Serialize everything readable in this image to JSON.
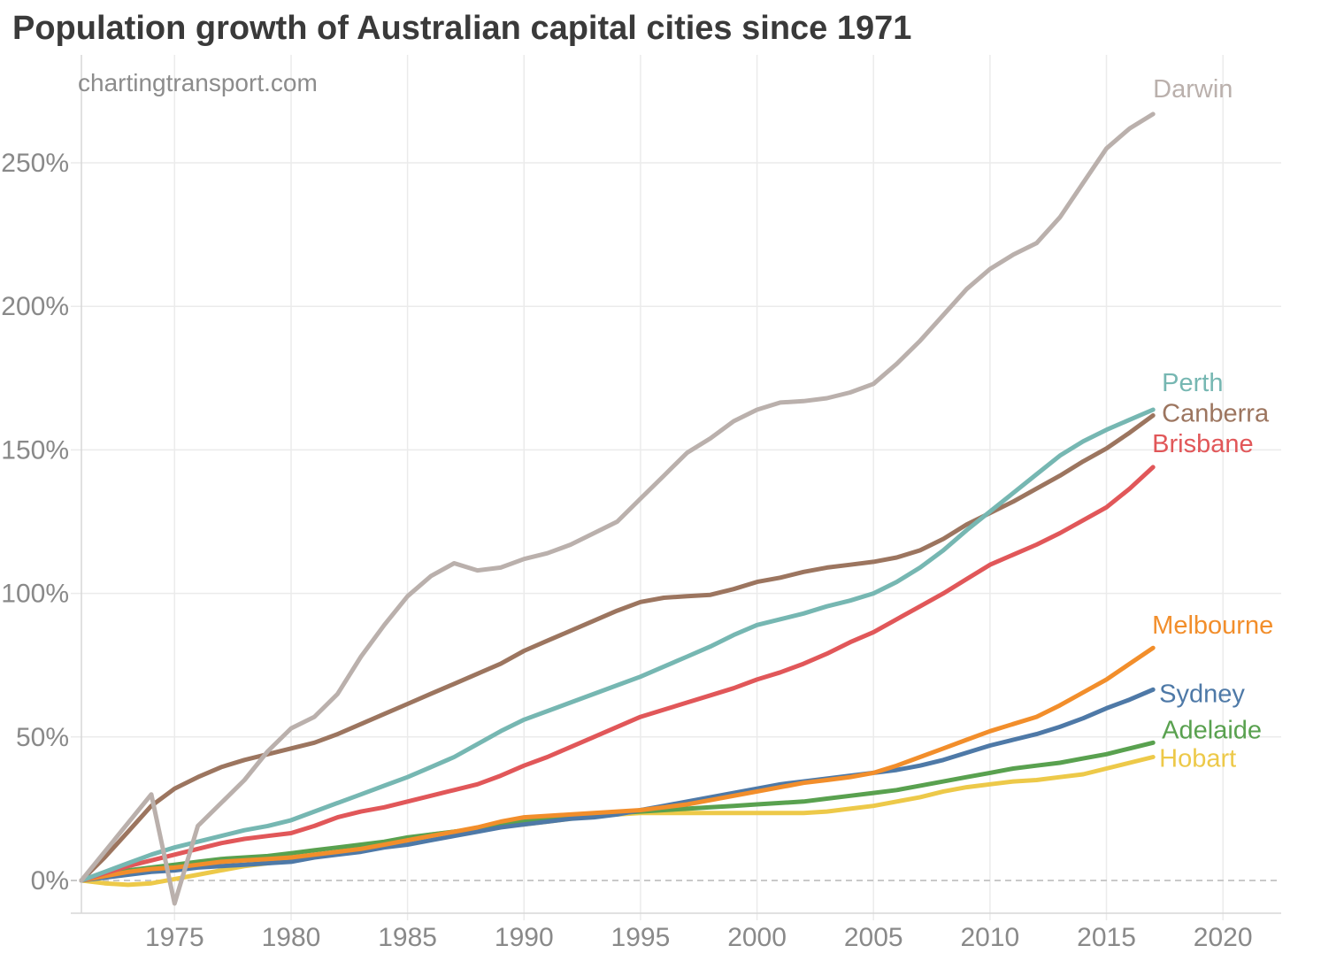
{
  "title": "Population growth of Australian capital cities since 1971",
  "watermark": "chartingtransport.com",
  "colors": {
    "background": "#ffffff",
    "gridline": "#ebebeb",
    "axis_line": "#d7d7d7",
    "zero_line": "#c9c9c9",
    "tick_label": "#898989",
    "title": "#3a3a3a",
    "watermark": "#8c8c8c"
  },
  "chart_data": {
    "type": "line",
    "title": "Population growth of Australian capital cities since 1971",
    "xlabel": "",
    "ylabel": "",
    "grid": true,
    "zero_line_style": "dashed",
    "legend_position": "right-end-of-line-labels",
    "xlim": [
      1971,
      2022.5
    ],
    "ylim": [
      -15,
      285
    ],
    "x_ticks": [
      1975,
      1980,
      1985,
      1990,
      1995,
      2000,
      2005,
      2010,
      2015,
      2020
    ],
    "y_tick_values": [
      0,
      50,
      100,
      150,
      200,
      250
    ],
    "y_tick_labels": [
      "0%",
      "50%",
      "100%",
      "150%",
      "200%",
      "250%"
    ],
    "x": [
      1971,
      1972,
      1973,
      1974,
      1975,
      1976,
      1977,
      1978,
      1979,
      1980,
      1981,
      1982,
      1983,
      1984,
      1985,
      1986,
      1987,
      1988,
      1989,
      1990,
      1991,
      1992,
      1993,
      1994,
      1995,
      1996,
      1997,
      1998,
      1999,
      2000,
      2001,
      2002,
      2003,
      2004,
      2005,
      2006,
      2007,
      2008,
      2009,
      2010,
      2011,
      2012,
      2013,
      2014,
      2015,
      2016,
      2017
    ],
    "series": [
      {
        "name": "Darwin",
        "color": "#bab0ac",
        "values": [
          0,
          10,
          20,
          30,
          -8,
          19,
          27,
          35,
          45,
          53,
          57,
          65,
          78,
          89,
          99,
          106,
          110.5,
          108,
          109,
          112,
          114,
          117,
          121,
          125,
          133,
          141,
          149,
          154,
          160,
          164,
          166.5,
          167,
          168,
          170,
          173,
          180,
          188,
          197,
          206,
          213,
          218,
          222,
          231,
          243,
          255,
          262,
          267
        ]
      },
      {
        "name": "Perth",
        "color": "#76b7b2",
        "values": [
          0,
          3,
          6,
          9,
          11.5,
          13.5,
          15.5,
          17.5,
          19,
          21,
          24,
          27,
          30,
          33,
          36,
          39.5,
          43,
          47.5,
          52,
          56,
          59,
          62,
          65,
          68,
          71,
          74.5,
          78,
          81.5,
          85.5,
          89,
          91,
          93,
          95.5,
          97.5,
          100,
          104,
          109,
          115,
          122,
          128.5,
          135,
          141.5,
          148,
          153,
          157,
          160.5,
          164
        ]
      },
      {
        "name": "Canberra",
        "color": "#9c755f",
        "values": [
          0,
          8,
          17,
          26,
          32,
          36,
          39.5,
          42,
          44,
          46,
          48,
          51,
          54.5,
          58,
          61.5,
          65,
          68.5,
          72,
          75.5,
          80,
          83.5,
          87,
          90.5,
          94,
          97,
          98.5,
          99,
          99.5,
          101.5,
          104,
          105.5,
          107.5,
          109,
          110,
          111,
          112.5,
          115,
          119,
          124,
          128,
          132,
          136.5,
          141,
          146,
          150.5,
          156,
          162
        ]
      },
      {
        "name": "Brisbane",
        "color": "#e15759",
        "values": [
          0,
          2.5,
          5,
          7,
          9,
          11,
          13,
          14.5,
          15.5,
          16.5,
          19,
          22,
          24,
          25.5,
          27.5,
          29.5,
          31.5,
          33.5,
          36.5,
          40,
          43,
          46.5,
          50,
          53.5,
          57,
          59.5,
          62,
          64.5,
          67,
          70,
          72.5,
          75.5,
          79,
          83,
          86.5,
          91,
          95.5,
          100,
          105,
          110,
          113.5,
          117,
          121,
          125.5,
          130,
          136.5,
          144
        ]
      },
      {
        "name": "Melbourne",
        "color": "#f28e2b",
        "values": [
          0,
          1.5,
          3,
          4,
          4.5,
          5.5,
          6.5,
          7,
          7.5,
          8,
          9,
          10,
          11,
          12.5,
          14,
          15.5,
          17,
          18.5,
          20.5,
          22,
          22.5,
          23,
          23.5,
          24,
          24.5,
          25.5,
          26.5,
          28,
          29.5,
          31,
          32.5,
          34,
          35,
          36,
          37.5,
          40,
          43,
          46,
          49,
          52,
          54.5,
          57,
          61,
          65.5,
          70,
          75.5,
          81
        ]
      },
      {
        "name": "Sydney",
        "color": "#4e79a7",
        "values": [
          0,
          1,
          2,
          3,
          3.5,
          4.5,
          5,
          5.5,
          6,
          6.5,
          8,
          9,
          10,
          11.5,
          12.5,
          14,
          15.5,
          17,
          18.5,
          19.5,
          20.5,
          21.5,
          22,
          23,
          24.5,
          26,
          27.5,
          29,
          30.5,
          32,
          33.5,
          34.5,
          35.5,
          36.5,
          37.5,
          38.5,
          40,
          42,
          44.5,
          47,
          49,
          51,
          53.5,
          56.5,
          60,
          63,
          66.5
        ]
      },
      {
        "name": "Adelaide",
        "color": "#59a14f",
        "values": [
          0,
          2,
          3.5,
          4.5,
          5.5,
          6.5,
          7.5,
          8,
          8.5,
          9.5,
          10.5,
          11.5,
          12.5,
          13.5,
          15,
          16,
          17,
          18,
          19.5,
          20.5,
          21.5,
          22.5,
          23,
          23.5,
          24,
          24.5,
          25,
          25.5,
          26,
          26.5,
          27,
          27.5,
          28.5,
          29.5,
          30.5,
          31.5,
          33,
          34.5,
          36,
          37.5,
          39,
          40,
          41,
          42.5,
          44,
          46,
          48
        ]
      },
      {
        "name": "Hobart",
        "color": "#edc949",
        "values": [
          0,
          -1,
          -1.5,
          -1,
          0.5,
          2,
          3.5,
          5,
          6,
          7,
          8.5,
          10,
          11.5,
          13,
          14.5,
          16,
          17,
          18,
          19,
          19.5,
          20.5,
          21.5,
          22.5,
          23,
          23.5,
          23.5,
          23.5,
          23.5,
          23.5,
          23.5,
          23.5,
          23.5,
          24,
          25,
          26,
          27.5,
          29,
          31,
          32.5,
          33.5,
          34.5,
          35,
          36,
          37,
          39,
          41,
          43
        ]
      }
    ]
  }
}
